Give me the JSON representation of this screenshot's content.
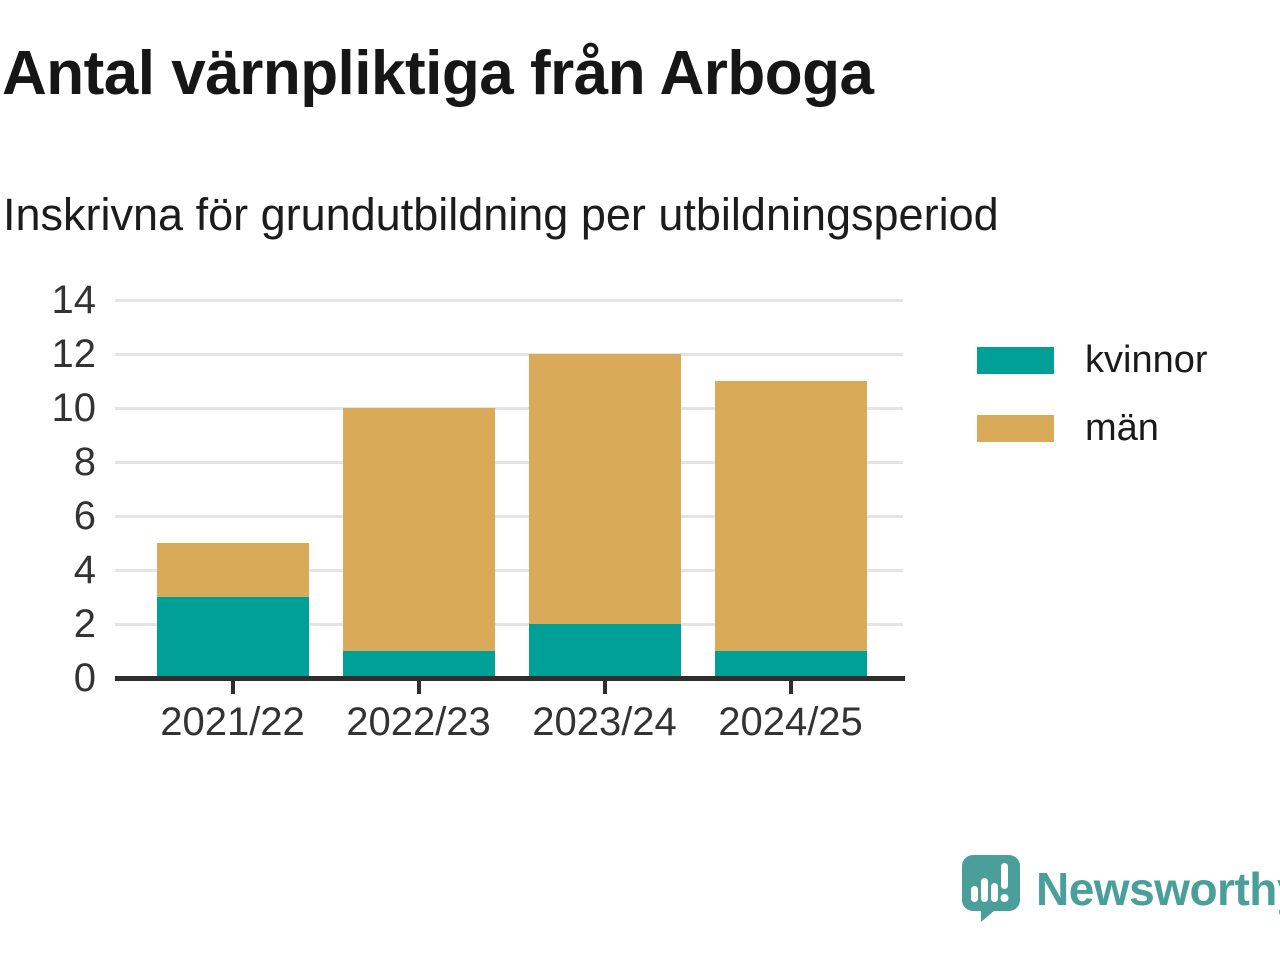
{
  "chart_data": {
    "type": "bar",
    "stacked": true,
    "title": "Antal värnpliktiga från Arboga",
    "subtitle": "Inskrivna för grundutbildning per utbildningsperiod",
    "categories": [
      "2021/22",
      "2022/23",
      "2023/24",
      "2024/25"
    ],
    "series": [
      {
        "name": "kvinnor",
        "color": "#00a096",
        "values": [
          3,
          1,
          2,
          1
        ]
      },
      {
        "name": "män",
        "color": "#d9ab58",
        "values": [
          2,
          9,
          10,
          10
        ]
      }
    ],
    "totals": [
      5,
      10,
      12,
      11
    ],
    "ylim": [
      0,
      14
    ],
    "ytick_step": 2,
    "yticks": [
      0,
      2,
      4,
      6,
      8,
      10,
      12,
      14
    ],
    "grid": true,
    "legend_position": "right"
  },
  "colors": {
    "grid": "#e4e4e4",
    "axis": "#2e2e2e",
    "axis_text": "#333333",
    "title_text": "#161616",
    "background": "#ffffff"
  },
  "branding": {
    "logo_text": "Newsworthy",
    "logo_color": "#4a9f9b",
    "logo_icon": "speech-bubble-with-bar-chart-and-exclamation"
  }
}
